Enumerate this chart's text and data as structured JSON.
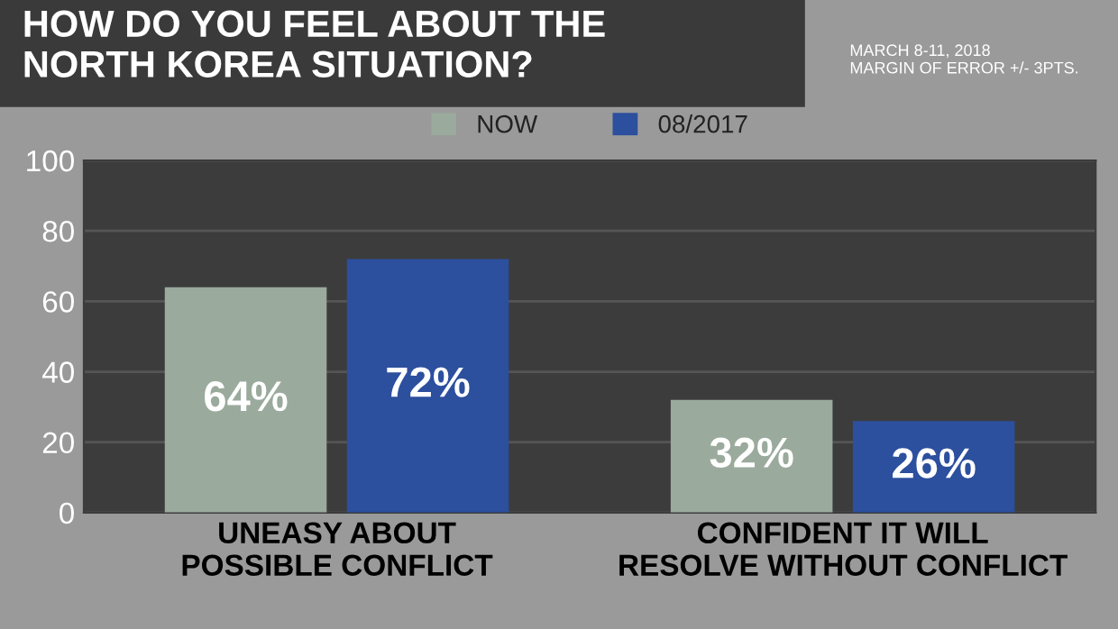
{
  "chart_data": {
    "type": "bar",
    "title": "HOW DO YOU FEEL ABOUT THE\nNORTH KOREA SITUATION?",
    "annotations": [
      "MARCH 8-11, 2018\nMARGIN OF ERROR +/- 3PTS."
    ],
    "categories": [
      "UNEASY ABOUT\nPOSSIBLE CONFLICT",
      "CONFIDENT IT WILL\nRESOLVE WITHOUT CONFLICT"
    ],
    "series": [
      {
        "name": "NOW",
        "color": "#9aaa9c",
        "values": [
          64,
          32
        ],
        "value_labels": [
          "64%",
          "32%"
        ]
      },
      {
        "name": "08/2017",
        "color": "#2c4f9e",
        "values": [
          72,
          26
        ],
        "value_labels": [
          "72%",
          "26%"
        ]
      }
    ],
    "ylim": [
      0,
      100
    ],
    "yticks": [
      0,
      20,
      40,
      60,
      80,
      100
    ],
    "grid": "y",
    "legend": "top"
  }
}
